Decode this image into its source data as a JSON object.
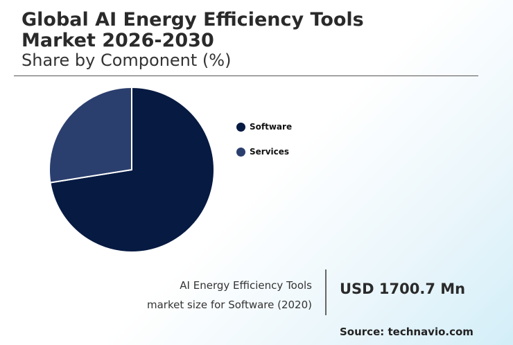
{
  "header": {
    "title": "Global AI Energy Efficiency Tools Market 2026-2030",
    "subtitle": "Share by Component (%)"
  },
  "chart_data": {
    "type": "pie",
    "categories": [
      "Software",
      "Services"
    ],
    "values": [
      72.5,
      27.5
    ],
    "colors": [
      "#061a42",
      "#2b3f6e"
    ],
    "legend_position": "right"
  },
  "info": {
    "caption_line1": "AI Energy Efficiency Tools",
    "caption_line2": "market size for Software (2020)",
    "metric": "USD 1700.7 Mn",
    "source": "Source: technavio.com"
  }
}
